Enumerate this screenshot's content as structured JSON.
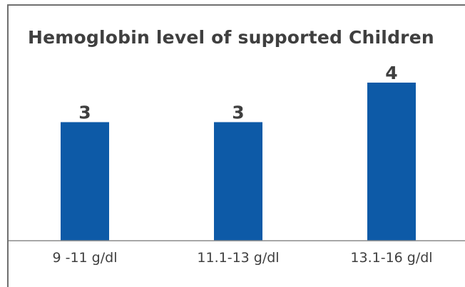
{
  "chart_data": {
    "type": "bar",
    "title": "Hemoglobin level of supported Children",
    "categories": [
      "9 -11 g/dl",
      "11.1-13 g/dl",
      "13.1-16 g/dl"
    ],
    "values": [
      3,
      3,
      4
    ],
    "xlabel": "",
    "ylabel": "",
    "ylim": [
      0,
      4
    ],
    "grid": false,
    "legend": "none",
    "bar_color": "#0d5aa7",
    "baseline_color": "#8a8a8a",
    "text_color": "#3f3f3f"
  }
}
